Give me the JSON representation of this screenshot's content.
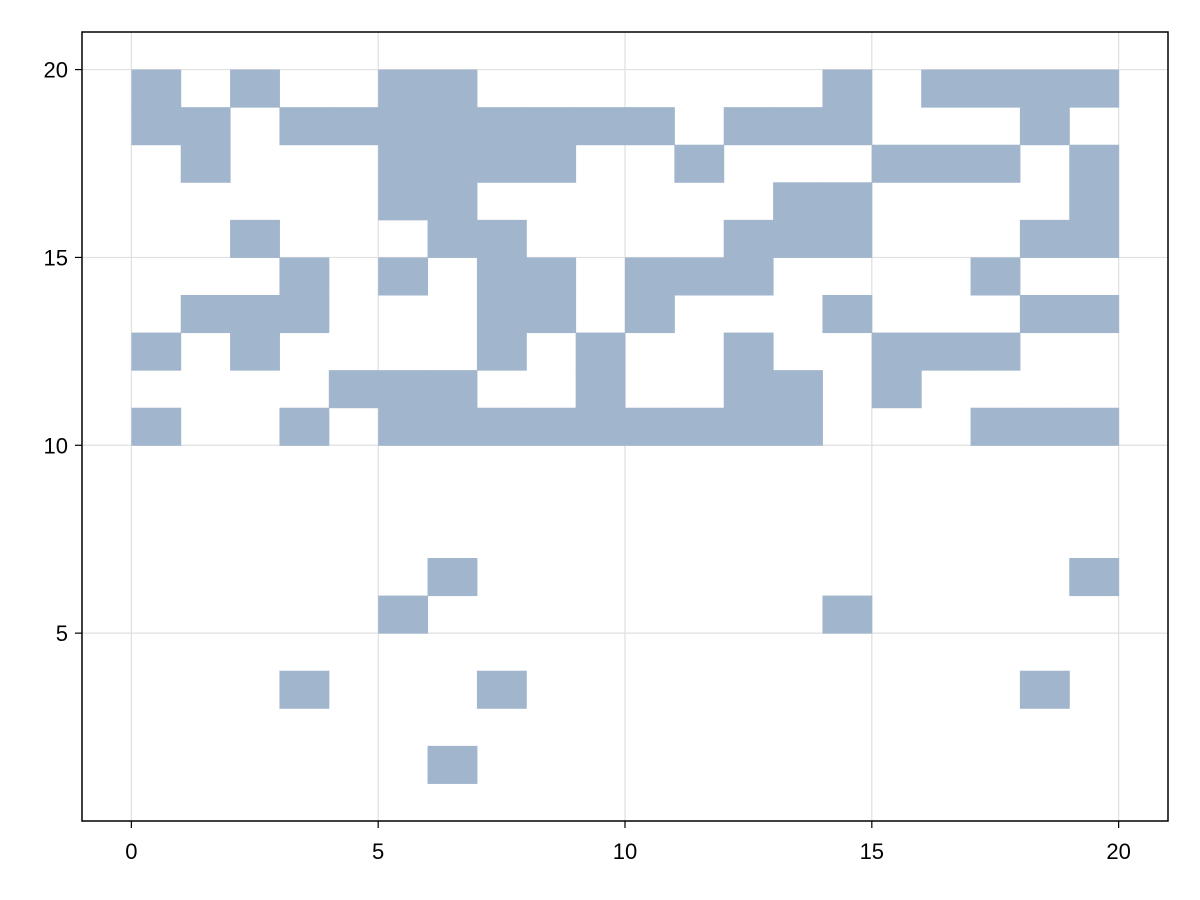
{
  "chart_data": {
    "type": "heatmap",
    "title": "",
    "xlabel": "",
    "ylabel": "",
    "xlim": [
      -1,
      21
    ],
    "ylim": [
      0,
      21
    ],
    "x_ticks": [
      0,
      5,
      10,
      15,
      20
    ],
    "y_ticks": [
      5,
      10,
      15,
      20
    ],
    "x_tick_labels": [
      "0",
      "5",
      "10",
      "15",
      "20"
    ],
    "y_tick_labels": [
      "5",
      "10",
      "15",
      "20"
    ],
    "grid": true,
    "cell_size": [
      1,
      1
    ],
    "cells_note": "each [x, y] is the lower-left corner of a filled 1x1 cell",
    "cells": [
      [
        0,
        19
      ],
      [
        2,
        19
      ],
      [
        5,
        19
      ],
      [
        6,
        19
      ],
      [
        14,
        19
      ],
      [
        16,
        19
      ],
      [
        17,
        19
      ],
      [
        18,
        19
      ],
      [
        19,
        19
      ],
      [
        0,
        18
      ],
      [
        1,
        18
      ],
      [
        3,
        18
      ],
      [
        4,
        18
      ],
      [
        5,
        18
      ],
      [
        6,
        18
      ],
      [
        7,
        18
      ],
      [
        8,
        18
      ],
      [
        9,
        18
      ],
      [
        10,
        18
      ],
      [
        12,
        18
      ],
      [
        13,
        18
      ],
      [
        14,
        18
      ],
      [
        18,
        18
      ],
      [
        1,
        17
      ],
      [
        5,
        17
      ],
      [
        6,
        17
      ],
      [
        7,
        17
      ],
      [
        8,
        17
      ],
      [
        11,
        17
      ],
      [
        15,
        17
      ],
      [
        16,
        17
      ],
      [
        17,
        17
      ],
      [
        19,
        17
      ],
      [
        5,
        16
      ],
      [
        6,
        16
      ],
      [
        13,
        16
      ],
      [
        14,
        16
      ],
      [
        19,
        16
      ],
      [
        2,
        15
      ],
      [
        6,
        15
      ],
      [
        7,
        15
      ],
      [
        12,
        15
      ],
      [
        13,
        15
      ],
      [
        14,
        15
      ],
      [
        18,
        15
      ],
      [
        19,
        15
      ],
      [
        3,
        14
      ],
      [
        5,
        14
      ],
      [
        7,
        14
      ],
      [
        8,
        14
      ],
      [
        10,
        14
      ],
      [
        11,
        14
      ],
      [
        12,
        14
      ],
      [
        17,
        14
      ],
      [
        1,
        13
      ],
      [
        2,
        13
      ],
      [
        3,
        13
      ],
      [
        7,
        13
      ],
      [
        8,
        13
      ],
      [
        10,
        13
      ],
      [
        14,
        13
      ],
      [
        18,
        13
      ],
      [
        19,
        13
      ],
      [
        0,
        12
      ],
      [
        2,
        12
      ],
      [
        7,
        12
      ],
      [
        9,
        12
      ],
      [
        12,
        12
      ],
      [
        15,
        12
      ],
      [
        16,
        12
      ],
      [
        17,
        12
      ],
      [
        4,
        11
      ],
      [
        5,
        11
      ],
      [
        6,
        11
      ],
      [
        9,
        11
      ],
      [
        12,
        11
      ],
      [
        13,
        11
      ],
      [
        15,
        11
      ],
      [
        0,
        10
      ],
      [
        3,
        10
      ],
      [
        5,
        10
      ],
      [
        6,
        10
      ],
      [
        7,
        10
      ],
      [
        8,
        10
      ],
      [
        9,
        10
      ],
      [
        10,
        10
      ],
      [
        11,
        10
      ],
      [
        12,
        10
      ],
      [
        13,
        10
      ],
      [
        17,
        10
      ],
      [
        18,
        10
      ],
      [
        19,
        10
      ],
      [
        6,
        6
      ],
      [
        19,
        6
      ],
      [
        5,
        5
      ],
      [
        14,
        5
      ],
      [
        3,
        3
      ],
      [
        7,
        3
      ],
      [
        18,
        3
      ],
      [
        6,
        1
      ]
    ],
    "colors": {
      "fill": "#a1b6cd",
      "grid": "#e0e0e0",
      "axis": "#000000",
      "background": "#ffffff"
    }
  }
}
